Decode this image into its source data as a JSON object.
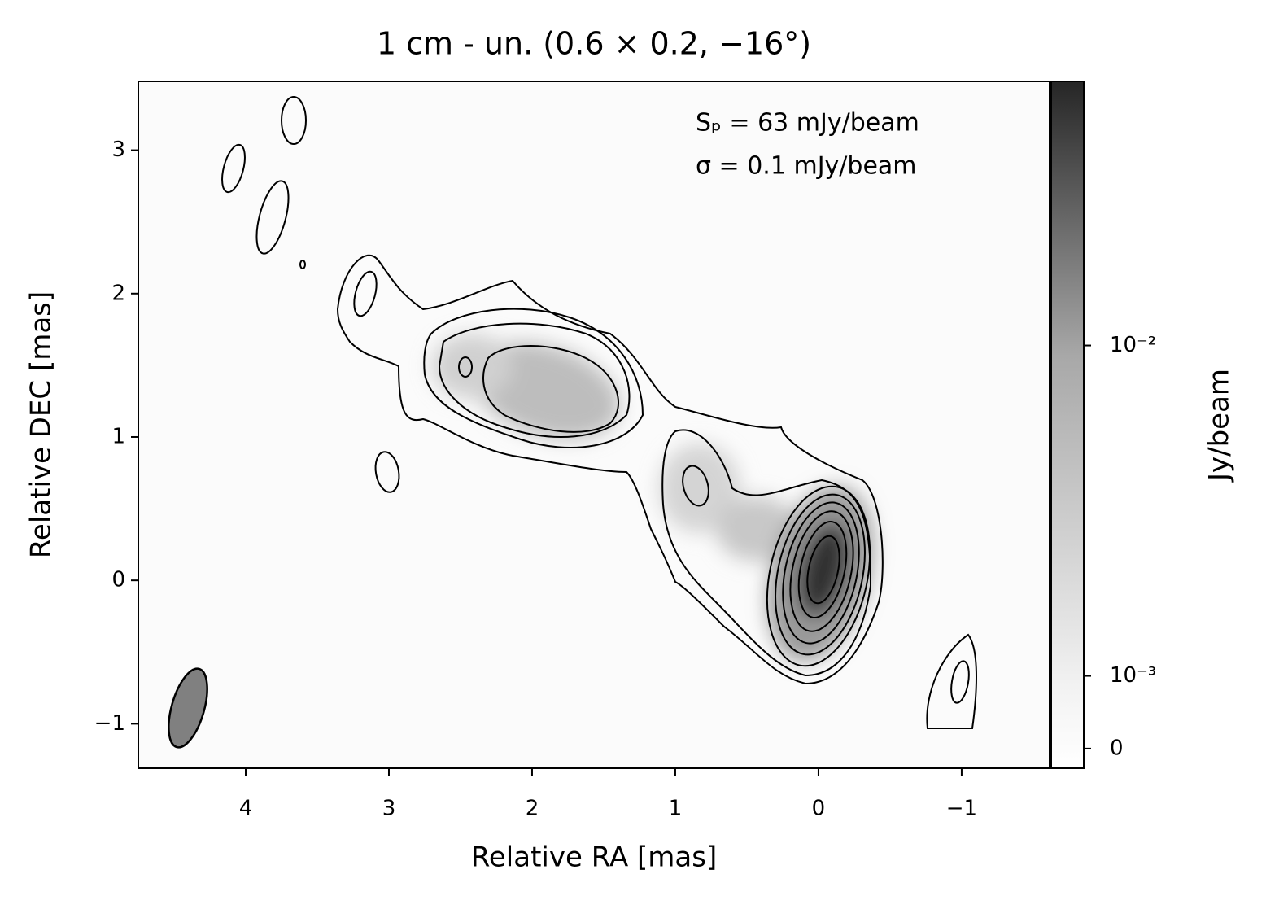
{
  "chart_data": {
    "type": "image",
    "title": "1 cm - un. (0.6 × 0.2, −16°)",
    "title_color": "#800080",
    "xlabel": "Relative RA [mas]",
    "ylabel": "Relative DEC [mas]",
    "xlim": [
      4.75,
      -1.614
    ],
    "ylim": [
      -1.31,
      3.48
    ],
    "xticks": [
      4,
      3,
      2,
      1,
      0,
      {
        "value": -1,
        "label": "−1"
      }
    ],
    "yticks": [
      {
        "value": -1,
        "label": "−1"
      },
      0,
      1,
      2,
      3
    ],
    "annotations": [
      "Sₚ = 63 mJy/beam",
      "σ = 0.1 mJy/beam"
    ],
    "colorbar": {
      "label": "Jy/beam",
      "scale": "symlog",
      "linthresh": 0.001,
      "linscale": 0.22,
      "clim": [
        -0.00027,
        0.063
      ],
      "ticks": [
        0,
        {
          "value": 0.001,
          "label": "10⁻³"
        },
        {
          "value": 0.01,
          "label": "10⁻²"
        }
      ]
    }
  }
}
